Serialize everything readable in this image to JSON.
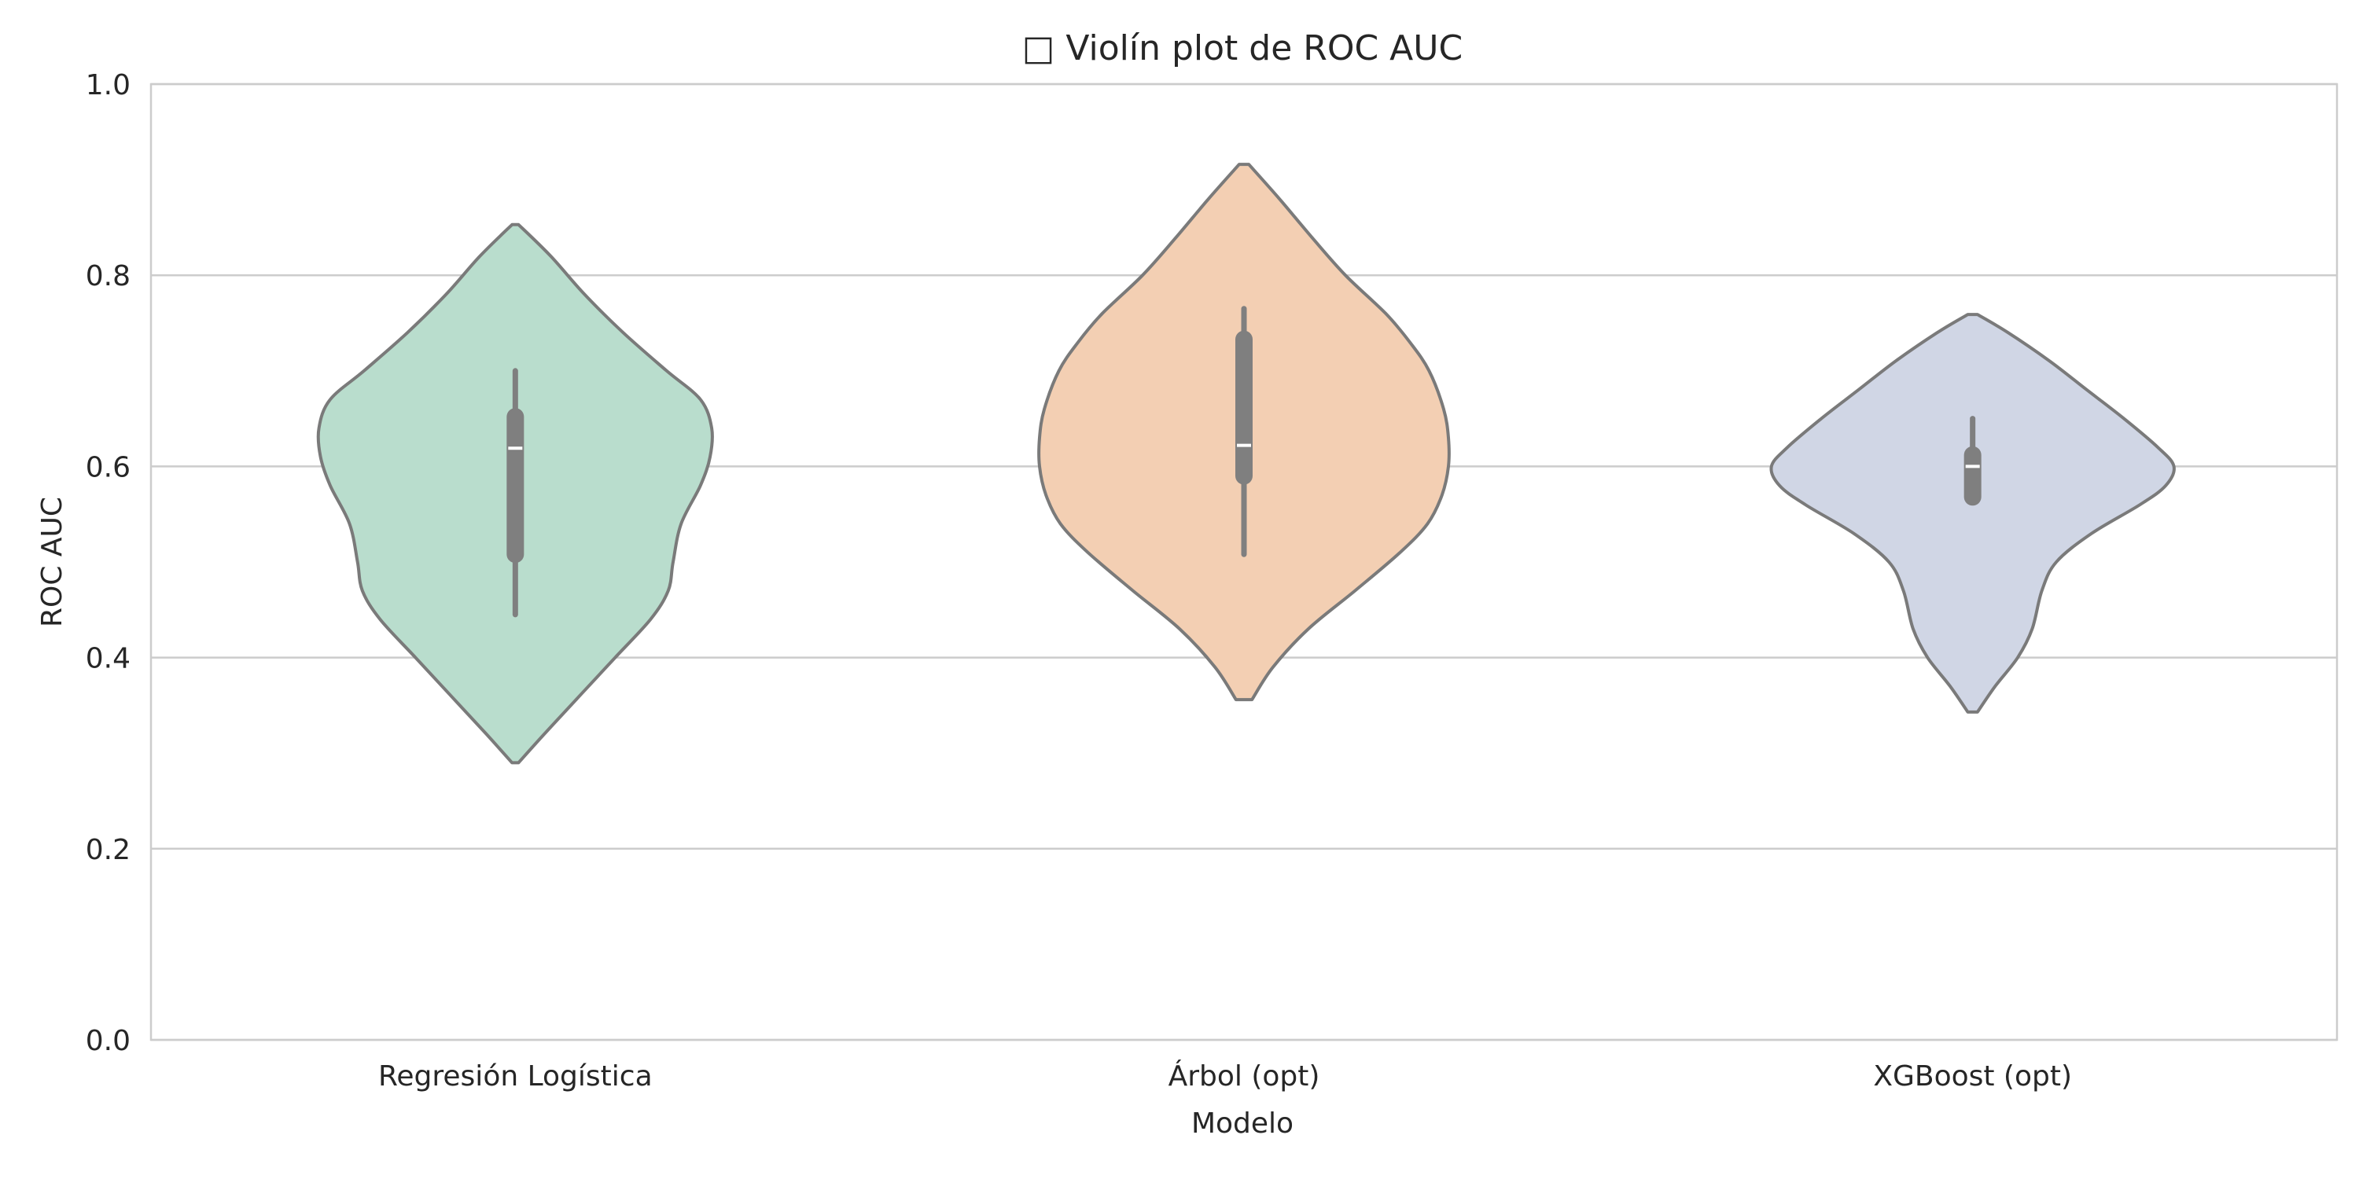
{
  "chart_data": {
    "type": "violin",
    "title": "□ Violín plot de ROC AUC",
    "xlabel": "Modelo",
    "ylabel": "ROC AUC",
    "ylim": [
      0.0,
      1.0
    ],
    "yticks": [
      0.0,
      0.2,
      0.4,
      0.6,
      0.8,
      1.0
    ],
    "ytick_labels": [
      "0.0",
      "0.2",
      "0.4",
      "0.6",
      "0.8",
      "1.0"
    ],
    "grid": "horizontal",
    "categories": [
      "Regresión Logística",
      "Árbol (opt)",
      "XGBoost (opt)"
    ],
    "series": [
      {
        "category": "Regresión Logística",
        "color": "#b9ddcd",
        "min": 0.29,
        "max": 0.853,
        "whisker_low": 0.445,
        "q1": 0.508,
        "median": 0.619,
        "q3": 0.652,
        "whisker_high": 0.7,
        "density": [
          [
            0.29,
            0.02
          ],
          [
            0.32,
            0.18
          ],
          [
            0.36,
            0.4
          ],
          [
            0.4,
            0.62
          ],
          [
            0.44,
            0.84
          ],
          [
            0.47,
            0.95
          ],
          [
            0.5,
            0.98
          ],
          [
            0.54,
            1.03
          ],
          [
            0.58,
            1.15
          ],
          [
            0.61,
            1.21
          ],
          [
            0.64,
            1.22
          ],
          [
            0.67,
            1.15
          ],
          [
            0.7,
            0.94
          ],
          [
            0.74,
            0.67
          ],
          [
            0.78,
            0.43
          ],
          [
            0.82,
            0.22
          ],
          [
            0.853,
            0.02
          ]
        ]
      },
      {
        "category": "Árbol (opt)",
        "color": "#f3cfb3",
        "min": 0.356,
        "max": 0.916,
        "whisker_low": 0.508,
        "q1": 0.59,
        "median": 0.622,
        "q3": 0.733,
        "whisker_high": 0.765,
        "density": [
          [
            0.356,
            0.05
          ],
          [
            0.39,
            0.18
          ],
          [
            0.43,
            0.4
          ],
          [
            0.47,
            0.69
          ],
          [
            0.51,
            0.97
          ],
          [
            0.54,
            1.14
          ],
          [
            0.57,
            1.23
          ],
          [
            0.6,
            1.27
          ],
          [
            0.63,
            1.27
          ],
          [
            0.66,
            1.24
          ],
          [
            0.7,
            1.15
          ],
          [
            0.73,
            1.03
          ],
          [
            0.76,
            0.88
          ],
          [
            0.8,
            0.63
          ],
          [
            0.84,
            0.42
          ],
          [
            0.88,
            0.22
          ],
          [
            0.916,
            0.03
          ]
        ]
      },
      {
        "category": "XGBoost (opt)",
        "color": "#d0d6e5",
        "min": 0.343,
        "max": 0.759,
        "whisker_low": 0.565,
        "q1": 0.568,
        "median": 0.6,
        "q3": 0.612,
        "whisker_high": 0.65,
        "density": [
          [
            0.343,
            0.03
          ],
          [
            0.37,
            0.14
          ],
          [
            0.4,
            0.28
          ],
          [
            0.43,
            0.37
          ],
          [
            0.47,
            0.43
          ],
          [
            0.5,
            0.52
          ],
          [
            0.53,
            0.74
          ],
          [
            0.56,
            1.04
          ],
          [
            0.58,
            1.2
          ],
          [
            0.6,
            1.25
          ],
          [
            0.62,
            1.15
          ],
          [
            0.65,
            0.94
          ],
          [
            0.68,
            0.71
          ],
          [
            0.71,
            0.48
          ],
          [
            0.74,
            0.22
          ],
          [
            0.759,
            0.03
          ]
        ]
      }
    ]
  },
  "colors": {
    "outline": "#7a7a7a",
    "box": "#7f7f7f",
    "median": "#ffffff",
    "grid": "#cccccc",
    "axes": "#cccccc"
  }
}
